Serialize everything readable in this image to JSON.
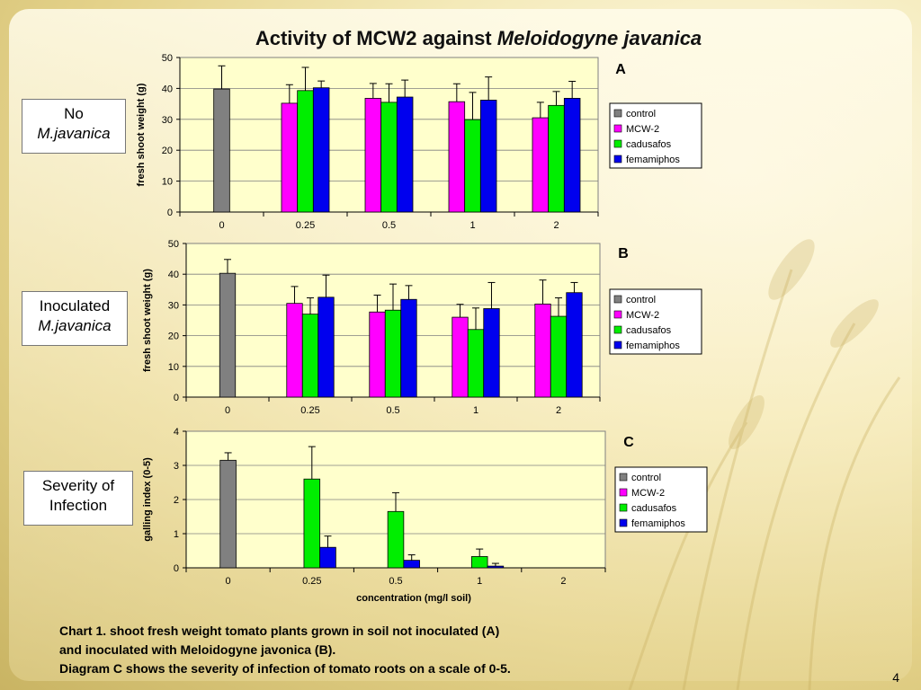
{
  "title": {
    "main": "Activity of MCW2 against",
    "italic": "Meloidogyne javanica"
  },
  "side_labels": [
    {
      "line1": "No",
      "line2": "M.javanica",
      "italic_line2": true
    },
    {
      "line1": "Inoculated",
      "line2": "M.javanica",
      "italic_line2": true
    },
    {
      "line1": "Severity of",
      "line2": "Infection",
      "italic_line2": false
    }
  ],
  "caption": {
    "line1": "Chart 1. shoot fresh weight tomato plants grown in soil not inoculated (A)",
    "line2": "and inoculated with Meloidogyne javonica (B).",
    "line3": "Diagram C shows the severity of infection of tomato roots on a scale of 0-5."
  },
  "page_number": "4",
  "colors": {
    "control": "#808080",
    "MCW-2": "#ff00ff",
    "cadusafos": "#00ee00",
    "femamiphos": "#0000ee",
    "plot_bg": "#ffffcc"
  },
  "chart_data": [
    {
      "panel": "A",
      "type": "bar",
      "categories": [
        "0",
        "0.25",
        "0.5",
        "1",
        "2"
      ],
      "ylabel": "fresh shoot weight (g)",
      "xlabel": "",
      "ylim": [
        0,
        50
      ],
      "yticks": [
        0,
        10,
        20,
        30,
        40,
        50
      ],
      "legend": "right",
      "series": [
        {
          "name": "control",
          "values": [
            39.8,
            null,
            null,
            null,
            null
          ],
          "errors": [
            7.5,
            null,
            null,
            null,
            null
          ]
        },
        {
          "name": "MCW-2",
          "values": [
            null,
            35.2,
            36.8,
            35.7,
            30.5
          ],
          "errors": [
            null,
            6.0,
            4.8,
            5.8,
            5.0
          ]
        },
        {
          "name": "cadusafos",
          "values": [
            null,
            39.3,
            35.5,
            29.9,
            34.5
          ],
          "errors": [
            null,
            7.5,
            6.0,
            8.8,
            4.5
          ]
        },
        {
          "name": "femamiphos",
          "values": [
            null,
            40.2,
            37.2,
            36.2,
            36.8
          ],
          "errors": [
            null,
            2.2,
            5.5,
            7.5,
            5.5
          ]
        }
      ]
    },
    {
      "panel": "B",
      "type": "bar",
      "categories": [
        "0",
        "0.25",
        "0.5",
        "1",
        "2"
      ],
      "ylabel": "fresh shoot weight (g)",
      "xlabel": "",
      "ylim": [
        0,
        50
      ],
      "yticks": [
        0,
        10,
        20,
        30,
        40,
        50
      ],
      "legend": "right",
      "series": [
        {
          "name": "control",
          "values": [
            40.3,
            null,
            null,
            null,
            null
          ],
          "errors": [
            4.5,
            null,
            null,
            null,
            null
          ]
        },
        {
          "name": "MCW-2",
          "values": [
            null,
            30.5,
            27.7,
            26.0,
            30.3
          ],
          "errors": [
            null,
            5.5,
            5.5,
            4.2,
            7.8
          ]
        },
        {
          "name": "cadusafos",
          "values": [
            null,
            27.0,
            28.3,
            22.0,
            26.3
          ],
          "errors": [
            null,
            5.3,
            8.5,
            7.0,
            6.0
          ]
        },
        {
          "name": "femamiphos",
          "values": [
            null,
            32.5,
            31.8,
            28.8,
            34.0
          ],
          "errors": [
            null,
            7.2,
            4.5,
            8.5,
            3.3
          ]
        }
      ]
    },
    {
      "panel": "C",
      "type": "bar",
      "categories": [
        "0",
        "0.25",
        "0.5",
        "1",
        "2"
      ],
      "ylabel": "galling index  (0-5)",
      "xlabel": "concentration (mg/l soil)",
      "ylim": [
        0,
        4
      ],
      "yticks": [
        0,
        1,
        2,
        3,
        4
      ],
      "legend": "right",
      "series": [
        {
          "name": "control",
          "values": [
            3.15,
            null,
            null,
            null,
            null
          ],
          "errors": [
            0.22,
            null,
            null,
            null,
            null
          ]
        },
        {
          "name": "MCW-2",
          "values": [
            null,
            0,
            0,
            0,
            0
          ],
          "errors": [
            null,
            null,
            null,
            null,
            null
          ]
        },
        {
          "name": "cadusafos",
          "values": [
            null,
            2.6,
            1.65,
            0.33,
            0
          ],
          "errors": [
            null,
            0.95,
            0.55,
            0.22,
            null
          ]
        },
        {
          "name": "femamiphos",
          "values": [
            null,
            0.6,
            0.22,
            0.05,
            0
          ],
          "errors": [
            null,
            0.33,
            0.16,
            0.08,
            null
          ]
        }
      ]
    }
  ]
}
